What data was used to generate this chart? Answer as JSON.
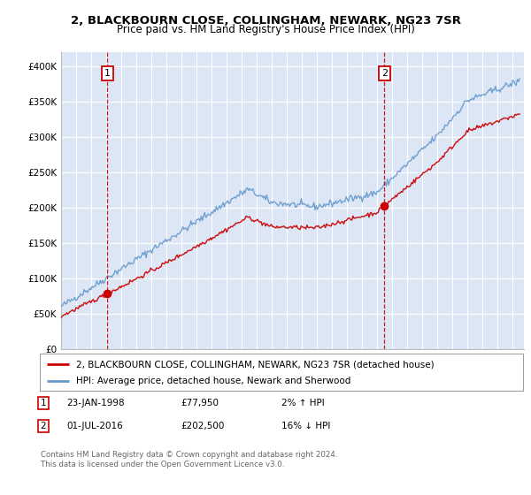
{
  "title1": "2, BLACKBOURN CLOSE, COLLINGHAM, NEWARK, NG23 7SR",
  "title2": "Price paid vs. HM Land Registry's House Price Index (HPI)",
  "ylabel_ticks": [
    "£0",
    "£50K",
    "£100K",
    "£150K",
    "£200K",
    "£250K",
    "£300K",
    "£350K",
    "£400K"
  ],
  "ylabel_values": [
    0,
    50000,
    100000,
    150000,
    200000,
    250000,
    300000,
    350000,
    400000
  ],
  "ylim": [
    0,
    420000
  ],
  "sale1_date": 1998.07,
  "sale1_price": 77950,
  "sale2_date": 2016.5,
  "sale2_price": 202500,
  "legend_line1": "2, BLACKBOURN CLOSE, COLLINGHAM, NEWARK, NG23 7SR (detached house)",
  "legend_line2": "HPI: Average price, detached house, Newark and Sherwood",
  "footer": "Contains HM Land Registry data © Crown copyright and database right 2024.\nThis data is licensed under the Open Government Licence v3.0.",
  "hpi_color": "#6699cc",
  "sale_color": "#cc0000",
  "vline_color": "#cc0000",
  "box_color": "#cc0000",
  "bg_color": "#dce6f5",
  "grid_color": "#ffffff",
  "xmin": 1995.0,
  "xmax": 2025.8
}
